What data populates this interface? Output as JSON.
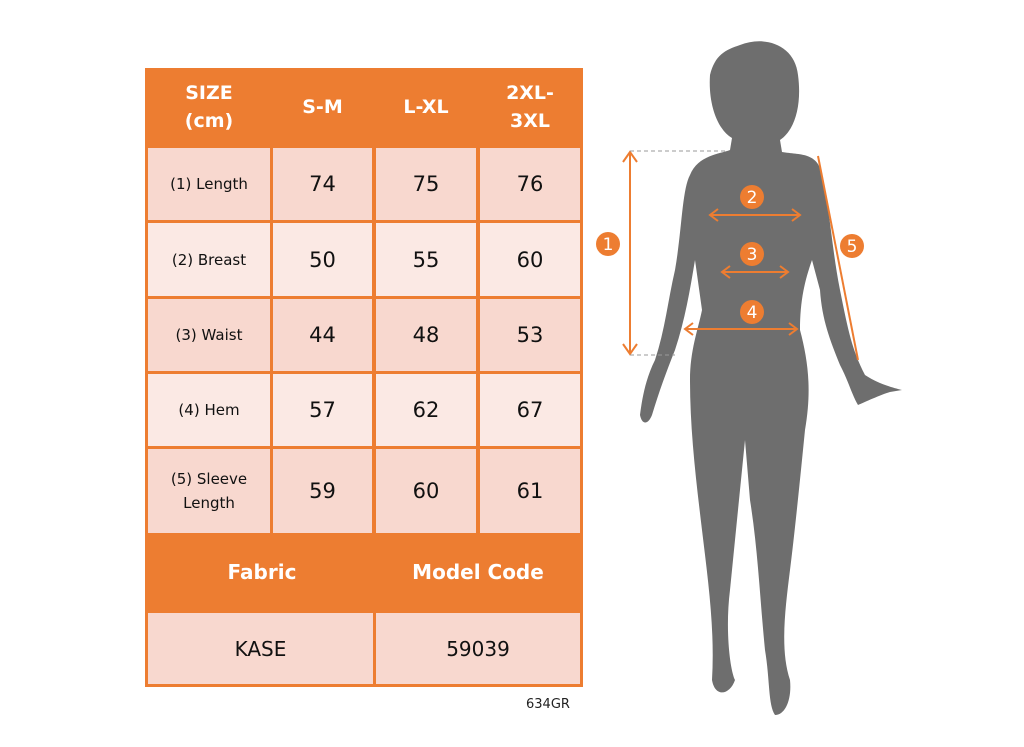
{
  "table": {
    "header": [
      "SIZE\n(cm)",
      "S-M",
      "L-XL",
      "2XL-\n3XL"
    ],
    "rows": [
      {
        "label": "(1) Length",
        "values": [
          "74",
          "75",
          "76"
        ]
      },
      {
        "label": "(2) Breast",
        "values": [
          "50",
          "55",
          "60"
        ]
      },
      {
        "label": "(3) Waist",
        "values": [
          "44",
          "48",
          "53"
        ]
      },
      {
        "label": "(4) Hem",
        "values": [
          "57",
          "62",
          "67"
        ]
      },
      {
        "label": "(5) Sleeve\nLength",
        "values": [
          "59",
          "60",
          "61"
        ]
      }
    ],
    "footer_headers": [
      "Fabric",
      "Model Code"
    ],
    "footer_values": [
      "KASE",
      "59039"
    ]
  },
  "product_code": "634GR",
  "figure": {
    "markers": [
      "1",
      "2",
      "3",
      "4",
      "5"
    ]
  },
  "colors": {
    "accent": "#ed7d31",
    "row_dark": "#f8d8cf",
    "row_light": "#fbe9e4",
    "silhouette": "#6e6e6e"
  }
}
